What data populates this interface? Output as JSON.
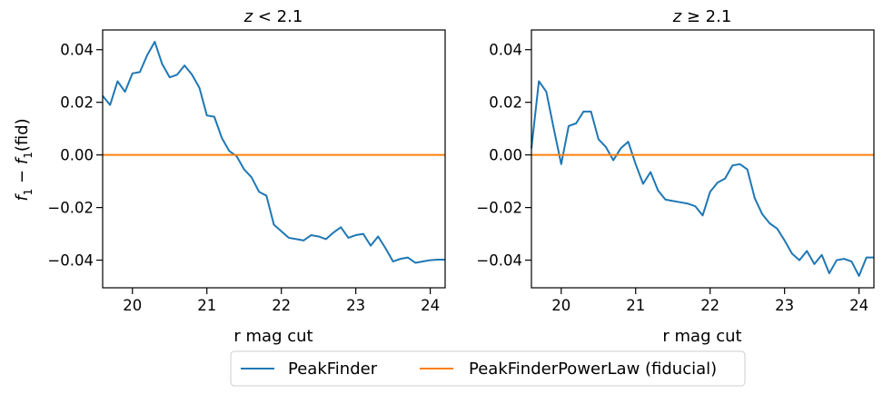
{
  "chart_data": [
    {
      "type": "line",
      "title": "z < 2.1",
      "xlabel": "r mag cut",
      "ylabel": "f1 − f1(fid)",
      "xlim": [
        19.6,
        24.2
      ],
      "ylim": [
        -0.0505,
        0.0475
      ],
      "xticks": [
        "20",
        "21",
        "22",
        "23",
        "24"
      ],
      "yticks": [
        "0.04",
        "0.02",
        "0.00",
        "−0.02",
        "−0.04"
      ],
      "series": [
        {
          "name": "PeakFinder",
          "color": "#1f77b4",
          "x": [
            19.6,
            19.7,
            19.8,
            19.9,
            20.0,
            20.1,
            20.2,
            20.3,
            20.4,
            20.5,
            20.6,
            20.7,
            20.8,
            20.9,
            21.0,
            21.1,
            21.2,
            21.3,
            21.4,
            21.5,
            21.6,
            21.7,
            21.8,
            21.9,
            22.0,
            22.1,
            22.2,
            22.3,
            22.4,
            22.5,
            22.6,
            22.7,
            22.8,
            22.9,
            23.0,
            23.1,
            23.2,
            23.3,
            23.4,
            23.5,
            23.6,
            23.7,
            23.8,
            23.9,
            24.0,
            24.1,
            24.2
          ],
          "values": [
            0.0225,
            0.019,
            0.028,
            0.024,
            0.031,
            0.0315,
            0.038,
            0.043,
            0.0345,
            0.0295,
            0.0305,
            0.034,
            0.0305,
            0.0255,
            0.015,
            0.0145,
            0.0065,
            0.0015,
            -0.0005,
            -0.0055,
            -0.0085,
            -0.014,
            -0.0155,
            -0.0265,
            -0.029,
            -0.0315,
            -0.032,
            -0.0325,
            -0.0305,
            -0.031,
            -0.032,
            -0.0295,
            -0.0275,
            -0.0315,
            -0.0305,
            -0.03,
            -0.0345,
            -0.031,
            -0.0355,
            -0.0405,
            -0.0395,
            -0.039,
            -0.041,
            -0.0405,
            -0.04,
            -0.0398,
            -0.0398
          ]
        },
        {
          "name": "PeakFinderPowerLaw (fiducial)",
          "color": "#ff7f0e",
          "x": [
            19.6,
            24.2
          ],
          "values": [
            0.0,
            0.0
          ]
        }
      ]
    },
    {
      "type": "line",
      "title": "z ≥ 2.1",
      "xlabel": "r mag cut",
      "ylabel": "",
      "xlim": [
        19.6,
        24.2
      ],
      "ylim": [
        -0.0505,
        0.0475
      ],
      "xticks": [
        "20",
        "21",
        "22",
        "23",
        "24"
      ],
      "yticks": [
        "0.04",
        "0.02",
        "0.00",
        "−0.02",
        "−0.04"
      ],
      "series": [
        {
          "name": "PeakFinder",
          "color": "#1f77b4",
          "x": [
            19.6,
            19.7,
            19.8,
            19.9,
            20.0,
            20.1,
            20.2,
            20.3,
            20.4,
            20.5,
            20.6,
            20.7,
            20.8,
            20.9,
            21.0,
            21.1,
            21.2,
            21.3,
            21.4,
            21.5,
            21.6,
            21.7,
            21.8,
            21.9,
            22.0,
            22.1,
            22.2,
            22.3,
            22.4,
            22.5,
            22.6,
            22.7,
            22.8,
            22.9,
            23.0,
            23.1,
            23.2,
            23.3,
            23.4,
            23.5,
            23.6,
            23.7,
            23.8,
            23.9,
            24.0,
            24.1,
            24.2
          ],
          "values": [
            0.0025,
            0.028,
            0.024,
            0.01,
            -0.0035,
            0.011,
            0.012,
            0.0165,
            0.0165,
            0.006,
            0.003,
            -0.002,
            0.0025,
            0.005,
            -0.0035,
            -0.011,
            -0.0065,
            -0.0135,
            -0.017,
            -0.0175,
            -0.018,
            -0.0185,
            -0.0195,
            -0.023,
            -0.014,
            -0.0105,
            -0.009,
            -0.004,
            -0.0035,
            -0.0055,
            -0.0165,
            -0.0225,
            -0.026,
            -0.028,
            -0.0325,
            -0.0375,
            -0.04,
            -0.0365,
            -0.0415,
            -0.038,
            -0.045,
            -0.04,
            -0.0395,
            -0.0405,
            -0.046,
            -0.039,
            -0.039
          ]
        },
        {
          "name": "PeakFinderPowerLaw (fiducial)",
          "color": "#ff7f0e",
          "x": [
            19.6,
            24.2
          ],
          "values": [
            0.0,
            0.0
          ]
        }
      ]
    }
  ],
  "legend": {
    "placement": "bottom-center",
    "entries": [
      {
        "label": "PeakFinder",
        "color": "#1f77b4"
      },
      {
        "label": "PeakFinderPowerLaw (fiducial)",
        "color": "#ff7f0e"
      }
    ]
  }
}
